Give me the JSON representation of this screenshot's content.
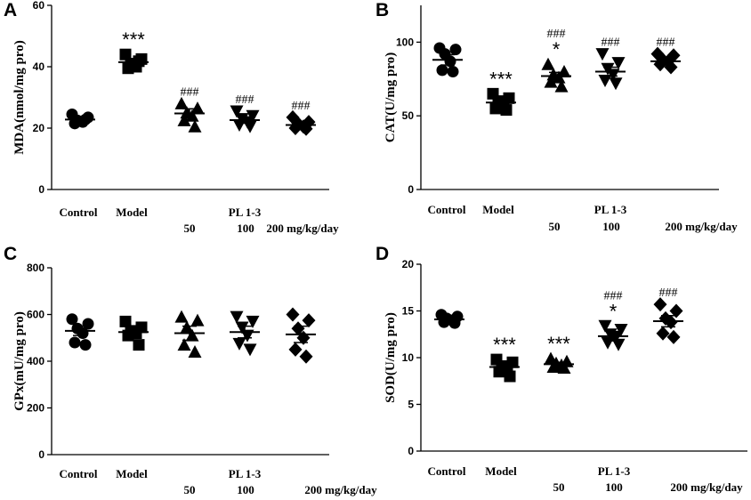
{
  "chart_data": [
    {
      "panel": "A",
      "type": "scatter",
      "ylabel": "MDA(nmol/mg pro)",
      "ylim": [
        0,
        60
      ],
      "yticks": [
        0,
        20,
        40,
        60
      ],
      "x_labels": {
        "control": "Control",
        "model": "Model",
        "group": "PL 1-3",
        "dose1": "50",
        "dose2": "100",
        "dose3": "200 mg/kg/day"
      },
      "groups": [
        {
          "name": "Control",
          "marker": "circle",
          "mean": 22.8,
          "sem": 0.8,
          "values": [
            24.5,
            23.5,
            22.5,
            22.0,
            21.5,
            22.8
          ],
          "annotation_top": "",
          "annotation_bottom": ""
        },
        {
          "name": "Model",
          "marker": "square",
          "mean": 41.5,
          "sem": 1.0,
          "values": [
            44.0,
            42.5,
            41.0,
            40.0,
            39.5,
            41.8
          ],
          "annotation_top": "",
          "annotation_bottom": "***"
        },
        {
          "name": "50",
          "marker": "triangle-up",
          "mean": 24.8,
          "sem": 1.5,
          "values": [
            28.0,
            26.5,
            25.0,
            24.0,
            22.5,
            20.5
          ],
          "annotation_top": "",
          "annotation_bottom": "###"
        },
        {
          "name": "100",
          "marker": "triangle-down",
          "mean": 22.6,
          "sem": 1.0,
          "values": [
            25.5,
            24.0,
            23.0,
            22.0,
            21.0,
            20.5
          ],
          "annotation_top": "",
          "annotation_bottom": "###"
        },
        {
          "name": "200",
          "marker": "diamond",
          "mean": 21.0,
          "sem": 0.7,
          "values": [
            23.5,
            22.0,
            21.5,
            20.5,
            20.0,
            19.8
          ],
          "annotation_top": "",
          "annotation_bottom": "###"
        }
      ]
    },
    {
      "panel": "B",
      "type": "scatter",
      "ylabel": "CAT(U/mg pro)",
      "ylim": [
        0,
        125
      ],
      "yticks": [
        0,
        50,
        100
      ],
      "x_labels": {
        "control": "Control",
        "model": "Model",
        "group": "PL 1-3",
        "dose1": "50",
        "dose2": "100",
        "dose3": "200 mg/kg/day"
      },
      "groups": [
        {
          "name": "Control",
          "marker": "circle",
          "mean": 88.0,
          "sem": 3.5,
          "values": [
            96.0,
            95.0,
            92.0,
            87.0,
            81.0,
            80.0
          ],
          "annotation_top": "",
          "annotation_bottom": ""
        },
        {
          "name": "Model",
          "marker": "square",
          "mean": 59.0,
          "sem": 2.0,
          "values": [
            65.0,
            62.0,
            60.0,
            58.0,
            55.0,
            54.0
          ],
          "annotation_top": "",
          "annotation_bottom": "***"
        },
        {
          "name": "50",
          "marker": "triangle-up",
          "mean": 77.0,
          "sem": 2.5,
          "values": [
            85.0,
            80.0,
            78.0,
            76.0,
            73.0,
            70.0
          ],
          "annotation_top": "###",
          "annotation_bottom": "*"
        },
        {
          "name": "100",
          "marker": "triangle-down",
          "mean": 80.0,
          "sem": 3.0,
          "values": [
            92.0,
            86.0,
            82.0,
            78.0,
            74.0,
            72.0
          ],
          "annotation_top": "",
          "annotation_bottom": "###"
        },
        {
          "name": "200",
          "marker": "diamond",
          "mean": 87.0,
          "sem": 1.5,
          "values": [
            92.0,
            91.0,
            88.0,
            87.0,
            85.0,
            83.0
          ],
          "annotation_top": "",
          "annotation_bottom": "###"
        }
      ]
    },
    {
      "panel": "C",
      "type": "scatter",
      "ylabel": "GPx(mU/mg pro)",
      "ylim": [
        0,
        800
      ],
      "yticks": [
        0,
        200,
        400,
        600,
        800
      ],
      "x_labels": {
        "control": "Control",
        "model": "Model",
        "group": "PL 1-3",
        "dose1": "50",
        "dose2": "100",
        "dose3": "200 mg/kg/day"
      },
      "groups": [
        {
          "name": "Control",
          "marker": "circle",
          "mean": 530,
          "sem": 20,
          "values": [
            580,
            560,
            540,
            520,
            480,
            470
          ],
          "annotation_top": "",
          "annotation_bottom": ""
        },
        {
          "name": "Model",
          "marker": "square",
          "mean": 525,
          "sem": 15,
          "values": [
            570,
            545,
            530,
            520,
            510,
            470
          ],
          "annotation_top": "",
          "annotation_bottom": ""
        },
        {
          "name": "50",
          "marker": "triangle-up",
          "mean": 520,
          "sem": 30,
          "values": [
            590,
            575,
            545,
            510,
            470,
            440
          ],
          "annotation_top": "",
          "annotation_bottom": ""
        },
        {
          "name": "100",
          "marker": "triangle-down",
          "mean": 525,
          "sem": 25,
          "values": [
            590,
            570,
            545,
            510,
            475,
            450
          ],
          "annotation_top": "",
          "annotation_bottom": ""
        },
        {
          "name": "200",
          "marker": "diamond",
          "mean": 515,
          "sem": 35,
          "values": [
            600,
            575,
            540,
            500,
            450,
            420
          ],
          "annotation_top": "",
          "annotation_bottom": ""
        }
      ]
    },
    {
      "panel": "D",
      "type": "scatter",
      "ylabel": "SOD(U/mg pro)",
      "ylim": [
        0,
        20
      ],
      "yticks": [
        0,
        5,
        10,
        15,
        20
      ],
      "x_labels": {
        "control": "Control",
        "model": "Model",
        "group": "PL 1-3",
        "dose1": "50",
        "dose2": "100",
        "dose3": "200 mg/kg/day"
      },
      "groups": [
        {
          "name": "Control",
          "marker": "circle",
          "mean": 14.1,
          "sem": 0.2,
          "values": [
            14.6,
            14.4,
            14.2,
            14.0,
            13.8,
            13.7
          ],
          "annotation_top": "",
          "annotation_bottom": ""
        },
        {
          "name": "Model",
          "marker": "square",
          "mean": 9.0,
          "sem": 0.35,
          "values": [
            9.8,
            9.5,
            9.1,
            8.8,
            8.5,
            8.0
          ],
          "annotation_top": "",
          "annotation_bottom": "***"
        },
        {
          "name": "50",
          "marker": "triangle-up",
          "mean": 9.3,
          "sem": 0.2,
          "values": [
            9.9,
            9.6,
            9.4,
            9.2,
            9.0,
            8.9
          ],
          "annotation_top": "",
          "annotation_bottom": "***"
        },
        {
          "name": "100",
          "marker": "triangle-down",
          "mean": 12.3,
          "sem": 0.5,
          "values": [
            13.4,
            13.0,
            12.5,
            12.2,
            11.6,
            11.4
          ],
          "annotation_top": "###",
          "annotation_bottom": "*"
        },
        {
          "name": "200",
          "marker": "diamond",
          "mean": 13.9,
          "sem": 0.6,
          "values": [
            15.7,
            15.0,
            14.2,
            13.8,
            12.6,
            12.2
          ],
          "annotation_top": "",
          "annotation_bottom": "###"
        }
      ]
    }
  ]
}
